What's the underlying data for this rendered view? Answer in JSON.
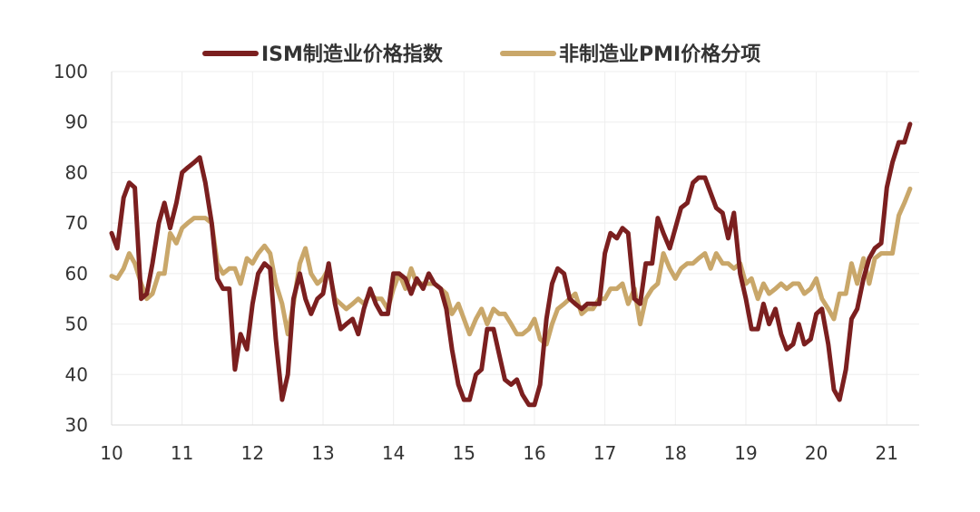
{
  "chart_data": {
    "type": "line",
    "title": "",
    "xlabel": "",
    "ylabel": "",
    "x_tick_labels": [
      "10",
      "11",
      "12",
      "13",
      "14",
      "15",
      "16",
      "17",
      "18",
      "19",
      "20",
      "21"
    ],
    "y_tick_labels": [
      "30",
      "40",
      "50",
      "60",
      "70",
      "80",
      "90",
      "100"
    ],
    "ylim": [
      30,
      100
    ],
    "xlim": [
      2010.0,
      2021.46
    ],
    "grid": true,
    "legend_position": "top",
    "series": [
      {
        "name": "ISM制造业价格指数",
        "color": "#7b1f1f",
        "points": [
          [
            2010.0,
            68
          ],
          [
            2010.08,
            65
          ],
          [
            2010.17,
            75
          ],
          [
            2010.25,
            78
          ],
          [
            2010.33,
            77
          ],
          [
            2010.42,
            55
          ],
          [
            2010.5,
            56
          ],
          [
            2010.58,
            62
          ],
          [
            2010.67,
            70
          ],
          [
            2010.75,
            74
          ],
          [
            2010.83,
            69
          ],
          [
            2010.92,
            74
          ],
          [
            2011.0,
            80
          ],
          [
            2011.08,
            81
          ],
          [
            2011.17,
            82
          ],
          [
            2011.25,
            83
          ],
          [
            2011.33,
            78
          ],
          [
            2011.42,
            70
          ],
          [
            2011.5,
            59
          ],
          [
            2011.58,
            57
          ],
          [
            2011.67,
            57
          ],
          [
            2011.75,
            41
          ],
          [
            2011.83,
            48
          ],
          [
            2011.92,
            45
          ],
          [
            2012.0,
            54
          ],
          [
            2012.08,
            60
          ],
          [
            2012.17,
            62
          ],
          [
            2012.25,
            61
          ],
          [
            2012.33,
            47
          ],
          [
            2012.42,
            35
          ],
          [
            2012.5,
            40
          ],
          [
            2012.58,
            55
          ],
          [
            2012.67,
            60
          ],
          [
            2012.75,
            55
          ],
          [
            2012.83,
            52
          ],
          [
            2012.92,
            55
          ],
          [
            2013.0,
            56
          ],
          [
            2013.08,
            62
          ],
          [
            2013.17,
            54
          ],
          [
            2013.25,
            49
          ],
          [
            2013.33,
            50
          ],
          [
            2013.42,
            51
          ],
          [
            2013.5,
            48
          ],
          [
            2013.58,
            53
          ],
          [
            2013.67,
            57
          ],
          [
            2013.75,
            54
          ],
          [
            2013.83,
            52
          ],
          [
            2013.92,
            52
          ],
          [
            2014.0,
            60
          ],
          [
            2014.08,
            60
          ],
          [
            2014.17,
            59
          ],
          [
            2014.25,
            56
          ],
          [
            2014.33,
            59
          ],
          [
            2014.42,
            57
          ],
          [
            2014.5,
            60
          ],
          [
            2014.58,
            58
          ],
          [
            2014.67,
            57
          ],
          [
            2014.75,
            53
          ],
          [
            2014.83,
            45
          ],
          [
            2014.92,
            38
          ],
          [
            2015.0,
            35
          ],
          [
            2015.08,
            35
          ],
          [
            2015.17,
            40
          ],
          [
            2015.25,
            41
          ],
          [
            2015.33,
            49
          ],
          [
            2015.42,
            49
          ],
          [
            2015.5,
            44
          ],
          [
            2015.58,
            39
          ],
          [
            2015.67,
            38
          ],
          [
            2015.75,
            39
          ],
          [
            2015.83,
            36
          ],
          [
            2015.92,
            34
          ],
          [
            2016.0,
            34
          ],
          [
            2016.08,
            38
          ],
          [
            2016.17,
            51
          ],
          [
            2016.25,
            58
          ],
          [
            2016.33,
            61
          ],
          [
            2016.42,
            60
          ],
          [
            2016.5,
            55
          ],
          [
            2016.58,
            54
          ],
          [
            2016.67,
            53
          ],
          [
            2016.75,
            54
          ],
          [
            2016.83,
            54
          ],
          [
            2016.92,
            54
          ],
          [
            2017.0,
            64
          ],
          [
            2017.08,
            68
          ],
          [
            2017.17,
            67
          ],
          [
            2017.25,
            69
          ],
          [
            2017.33,
            68
          ],
          [
            2017.42,
            55
          ],
          [
            2017.5,
            54
          ],
          [
            2017.58,
            62
          ],
          [
            2017.67,
            62
          ],
          [
            2017.75,
            71
          ],
          [
            2017.83,
            68
          ],
          [
            2017.92,
            65
          ],
          [
            2018.0,
            69
          ],
          [
            2018.08,
            73
          ],
          [
            2018.17,
            74
          ],
          [
            2018.25,
            78
          ],
          [
            2018.33,
            79
          ],
          [
            2018.42,
            79
          ],
          [
            2018.5,
            76
          ],
          [
            2018.58,
            73
          ],
          [
            2018.67,
            72
          ],
          [
            2018.75,
            67
          ],
          [
            2018.83,
            72
          ],
          [
            2018.92,
            60
          ],
          [
            2019.0,
            55
          ],
          [
            2019.08,
            49
          ],
          [
            2019.17,
            49
          ],
          [
            2019.25,
            54
          ],
          [
            2019.33,
            50
          ],
          [
            2019.42,
            53
          ],
          [
            2019.5,
            48
          ],
          [
            2019.58,
            45
          ],
          [
            2019.67,
            46
          ],
          [
            2019.75,
            50
          ],
          [
            2019.83,
            46
          ],
          [
            2019.92,
            47
          ],
          [
            2020.0,
            52
          ],
          [
            2020.08,
            53
          ],
          [
            2020.17,
            46
          ],
          [
            2020.25,
            37
          ],
          [
            2020.33,
            35
          ],
          [
            2020.42,
            41
          ],
          [
            2020.5,
            51
          ],
          [
            2020.58,
            53
          ],
          [
            2020.67,
            59
          ],
          [
            2020.75,
            63
          ],
          [
            2020.83,
            65
          ],
          [
            2020.92,
            66
          ],
          [
            2021.0,
            77
          ],
          [
            2021.08,
            82
          ],
          [
            2021.17,
            86
          ],
          [
            2021.25,
            86
          ],
          [
            2021.33,
            89.6
          ]
        ]
      },
      {
        "name": "非制造业PMI价格分项",
        "color": "#c9a76a",
        "points": [
          [
            2010.0,
            59.5
          ],
          [
            2010.08,
            59
          ],
          [
            2010.17,
            61
          ],
          [
            2010.25,
            64
          ],
          [
            2010.33,
            62
          ],
          [
            2010.42,
            58
          ],
          [
            2010.5,
            55
          ],
          [
            2010.58,
            56
          ],
          [
            2010.67,
            60
          ],
          [
            2010.75,
            60
          ],
          [
            2010.83,
            68
          ],
          [
            2010.92,
            66
          ],
          [
            2011.0,
            69
          ],
          [
            2011.08,
            70
          ],
          [
            2011.17,
            71
          ],
          [
            2011.25,
            71
          ],
          [
            2011.33,
            71
          ],
          [
            2011.42,
            70
          ],
          [
            2011.5,
            62
          ],
          [
            2011.58,
            60
          ],
          [
            2011.67,
            61
          ],
          [
            2011.75,
            61
          ],
          [
            2011.83,
            58
          ],
          [
            2011.92,
            63
          ],
          [
            2012.0,
            62
          ],
          [
            2012.08,
            64
          ],
          [
            2012.17,
            65.5
          ],
          [
            2012.25,
            64
          ],
          [
            2012.33,
            58
          ],
          [
            2012.42,
            54
          ],
          [
            2012.5,
            48
          ],
          [
            2012.58,
            54
          ],
          [
            2012.67,
            62
          ],
          [
            2012.75,
            65
          ],
          [
            2012.83,
            60
          ],
          [
            2012.92,
            58
          ],
          [
            2013.0,
            59
          ],
          [
            2013.08,
            61
          ],
          [
            2013.17,
            55
          ],
          [
            2013.25,
            54
          ],
          [
            2013.33,
            53
          ],
          [
            2013.42,
            54
          ],
          [
            2013.5,
            55
          ],
          [
            2013.58,
            54
          ],
          [
            2013.67,
            56
          ],
          [
            2013.75,
            55
          ],
          [
            2013.83,
            55
          ],
          [
            2013.92,
            53
          ],
          [
            2014.0,
            57
          ],
          [
            2014.08,
            60
          ],
          [
            2014.17,
            57
          ],
          [
            2014.25,
            61
          ],
          [
            2014.33,
            58
          ],
          [
            2014.42,
            58
          ],
          [
            2014.5,
            58
          ],
          [
            2014.58,
            58
          ],
          [
            2014.67,
            57
          ],
          [
            2014.75,
            56
          ],
          [
            2014.83,
            52
          ],
          [
            2014.92,
            54
          ],
          [
            2015.0,
            51
          ],
          [
            2015.08,
            48
          ],
          [
            2015.17,
            51
          ],
          [
            2015.25,
            53
          ],
          [
            2015.33,
            50
          ],
          [
            2015.42,
            53
          ],
          [
            2015.5,
            52
          ],
          [
            2015.58,
            52
          ],
          [
            2015.67,
            50
          ],
          [
            2015.75,
            48
          ],
          [
            2015.83,
            48
          ],
          [
            2015.92,
            49
          ],
          [
            2016.0,
            51
          ],
          [
            2016.08,
            47
          ],
          [
            2016.17,
            46
          ],
          [
            2016.25,
            50
          ],
          [
            2016.33,
            53
          ],
          [
            2016.42,
            54
          ],
          [
            2016.5,
            55
          ],
          [
            2016.58,
            56
          ],
          [
            2016.67,
            52
          ],
          [
            2016.75,
            53
          ],
          [
            2016.83,
            53
          ],
          [
            2016.92,
            55
          ],
          [
            2017.0,
            55
          ],
          [
            2017.08,
            57
          ],
          [
            2017.17,
            57
          ],
          [
            2017.25,
            58
          ],
          [
            2017.33,
            54
          ],
          [
            2017.42,
            57
          ],
          [
            2017.5,
            50
          ],
          [
            2017.58,
            55
          ],
          [
            2017.67,
            57
          ],
          [
            2017.75,
            58
          ],
          [
            2017.83,
            64
          ],
          [
            2017.92,
            61
          ],
          [
            2018.0,
            59
          ],
          [
            2018.08,
            61
          ],
          [
            2018.17,
            62
          ],
          [
            2018.25,
            62
          ],
          [
            2018.33,
            63
          ],
          [
            2018.42,
            64
          ],
          [
            2018.5,
            61
          ],
          [
            2018.58,
            64
          ],
          [
            2018.67,
            62
          ],
          [
            2018.75,
            62
          ],
          [
            2018.83,
            61
          ],
          [
            2018.92,
            62
          ],
          [
            2019.0,
            58
          ],
          [
            2019.08,
            59
          ],
          [
            2019.17,
            55
          ],
          [
            2019.25,
            58
          ],
          [
            2019.33,
            56
          ],
          [
            2019.42,
            57
          ],
          [
            2019.5,
            58
          ],
          [
            2019.58,
            57
          ],
          [
            2019.67,
            58
          ],
          [
            2019.75,
            58
          ],
          [
            2019.83,
            56
          ],
          [
            2019.92,
            57
          ],
          [
            2020.0,
            59
          ],
          [
            2020.08,
            55
          ],
          [
            2020.17,
            53
          ],
          [
            2020.25,
            51
          ],
          [
            2020.33,
            56
          ],
          [
            2020.42,
            56
          ],
          [
            2020.5,
            62
          ],
          [
            2020.58,
            58
          ],
          [
            2020.67,
            63
          ],
          [
            2020.75,
            58
          ],
          [
            2020.83,
            63
          ],
          [
            2020.92,
            64
          ],
          [
            2021.0,
            64
          ],
          [
            2021.08,
            64
          ],
          [
            2021.17,
            71.5
          ],
          [
            2021.25,
            74
          ],
          [
            2021.33,
            76.8
          ]
        ]
      }
    ]
  }
}
